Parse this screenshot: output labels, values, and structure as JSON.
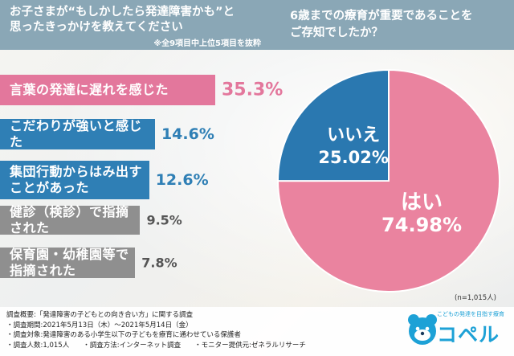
{
  "left_header": {
    "question_line1": "お子さまが“もしかしたら発達障害かも”と",
    "question_line2": "思ったきっかけを教えてください",
    "note": "※全9項目中上位5項目を抜粋"
  },
  "right_header": {
    "question_line1": "6歳までの療育が重要であることを",
    "question_line2": "ご存知でしたか？"
  },
  "chart_data": [
    {
      "type": "bar",
      "categories": [
        "言葉の発達に遅れを感じた",
        "こだわりが強いと感じた",
        "集団行動からはみ出すことがあった",
        "健診（検診）で指摘された",
        "保育園・幼稚園等で指摘された"
      ],
      "labels": [
        [
          "言葉の発達に遅れを感じた"
        ],
        [
          "こだわりが強いと感じた"
        ],
        [
          "集団行動からはみ出す",
          "ことがあった"
        ],
        [
          "健診（検診）で指摘された"
        ],
        [
          "保育園・幼稚園等で指摘された"
        ]
      ],
      "values": [
        35.3,
        14.6,
        12.6,
        9.5,
        7.8
      ],
      "value_labels": [
        "35.3%",
        "14.6%",
        "12.6%",
        "9.5%",
        "7.8%"
      ],
      "colors": [
        "#e3779c",
        "#2f7fb5",
        "#2f7fb5",
        "#8f8f8f",
        "#8f8f8f"
      ],
      "value_colors": [
        "#e3779c",
        "#2f7fb5",
        "#2f7fb5",
        "#555555",
        "#555555"
      ]
    },
    {
      "type": "pie",
      "slices": [
        {
          "label": "はい",
          "value": 74.98,
          "value_label": "74.98%",
          "color": "#ea839f"
        },
        {
          "label": "いいえ",
          "value": 25.02,
          "value_label": "25.02%",
          "color": "#2a78b0"
        }
      ],
      "n_label": "(n=1,015人)"
    }
  ],
  "footer": {
    "lines": [
      "調査概要:「発達障害の子どもとの向き合い方」に関する調査",
      "・調査期間:2021年5月13日（木）～2021年5月14日（金）",
      "・調査対象:発達障害のある小学生以下の子どもを療育に通わせている保護者",
      "・調査人数:1,015人　　・調査方法:インターネット調査　　・モニター提供元:ゼネラルリサーチ"
    ]
  },
  "logo": {
    "tagline": "こどもの発達を目指す療育",
    "name": "コペル"
  }
}
